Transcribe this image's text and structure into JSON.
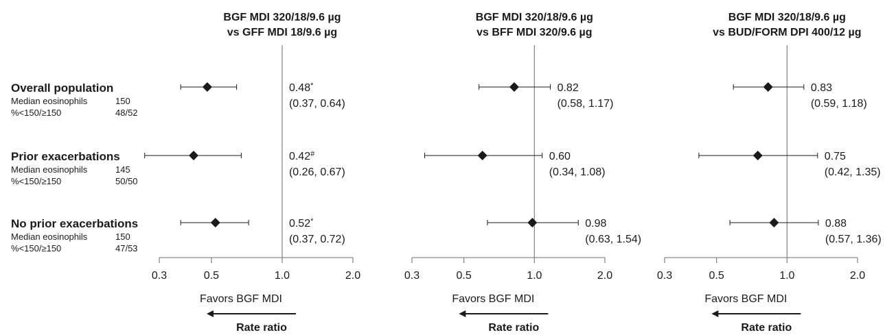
{
  "chart_data": {
    "type": "forest",
    "axis": {
      "scale": "log",
      "xlim": [
        0.3,
        2.0
      ],
      "ticks": [
        0.3,
        0.5,
        1.0,
        2.0
      ],
      "tick_labels": [
        "0.3",
        "0.5",
        "1.0",
        "2.0"
      ],
      "reference_line": 1.0
    },
    "favors_label": "Favors BGF MDI",
    "xlabel": "Rate ratio",
    "rows": [
      {
        "label": "Overall population",
        "lines": [
          {
            "name": "Median eosinophils",
            "value": "150"
          },
          {
            "name": "%<150/≥150",
            "value": "48/52"
          }
        ]
      },
      {
        "label": "Prior exacerbations",
        "lines": [
          {
            "name": "Median eosinophils",
            "value": "145"
          },
          {
            "name": "%<150/≥150",
            "value": "50/50"
          }
        ]
      },
      {
        "label": "No prior exacerbations",
        "lines": [
          {
            "name": "Median eosinophils",
            "value": "150"
          },
          {
            "name": "%<150/≥150",
            "value": "47/53"
          }
        ]
      }
    ],
    "panels": [
      {
        "title": [
          "BGF MDI 320/18/9.6 µg",
          "vs GFF MDI 18/9.6 µg"
        ],
        "points": [
          {
            "est": 0.48,
            "lo": 0.37,
            "hi": 0.64,
            "label": "0.48*",
            "ci": "(0.37, 0.64)"
          },
          {
            "est": 0.42,
            "lo": 0.26,
            "hi": 0.67,
            "label": "0.42#",
            "ci": "(0.26, 0.67)"
          },
          {
            "est": 0.52,
            "lo": 0.37,
            "hi": 0.72,
            "label": "0.52*",
            "ci": "(0.37, 0.72)"
          }
        ]
      },
      {
        "title": [
          "BGF MDI 320/18/9.6 µg",
          "vs BFF MDI 320/9.6 µg"
        ],
        "points": [
          {
            "est": 0.82,
            "lo": 0.58,
            "hi": 1.17,
            "label": "0.82",
            "ci": "(0.58, 1.17)"
          },
          {
            "est": 0.6,
            "lo": 0.34,
            "hi": 1.08,
            "label": "0.60",
            "ci": "(0.34, 1.08)"
          },
          {
            "est": 0.98,
            "lo": 0.63,
            "hi": 1.54,
            "label": "0.98",
            "ci": "(0.63, 1.54)"
          }
        ]
      },
      {
        "title": [
          "BGF MDI 320/18/9.6 µg",
          "vs BUD/FORM DPI 400/12 µg"
        ],
        "points": [
          {
            "est": 0.83,
            "lo": 0.59,
            "hi": 1.18,
            "label": "0.83",
            "ci": "(0.59, 1.18)"
          },
          {
            "est": 0.75,
            "lo": 0.42,
            "hi": 1.35,
            "label": "0.75",
            "ci": "(0.42, 1.35)"
          },
          {
            "est": 0.88,
            "lo": 0.57,
            "hi": 1.36,
            "label": "0.88",
            "ci": "(0.57, 1.36)"
          }
        ]
      }
    ]
  }
}
